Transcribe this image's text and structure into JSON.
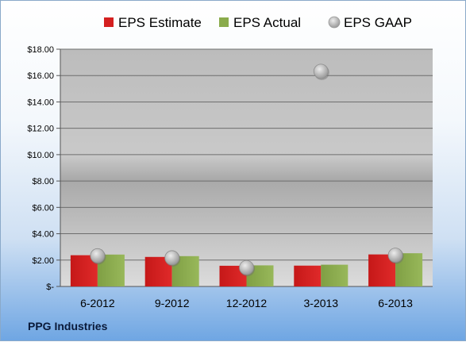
{
  "company": "PPG Industries",
  "chart_data": {
    "type": "bar",
    "categories": [
      "6-2012",
      "9-2012",
      "12-2012",
      "3-2013",
      "6-2013"
    ],
    "series": [
      {
        "name": "EPS Estimate",
        "type": "bar",
        "color": "#d42020",
        "values": [
          2.37,
          2.24,
          1.57,
          1.58,
          2.43
        ]
      },
      {
        "name": "EPS Actual",
        "type": "bar",
        "color": "#8aab4c",
        "values": [
          2.42,
          2.3,
          1.6,
          1.65,
          2.52
        ]
      },
      {
        "name": "EPS GAAP",
        "type": "scatter",
        "color": "#b4b4b4",
        "values": [
          2.33,
          2.17,
          1.43,
          16.32,
          2.37
        ]
      }
    ],
    "ylim": [
      0,
      18
    ],
    "yticks": [
      0,
      2,
      4,
      6,
      8,
      10,
      12,
      14,
      16,
      18
    ],
    "ytick_labels": [
      "$-",
      "$2.00",
      "$4.00",
      "$6.00",
      "$8.00",
      "$10.00",
      "$12.00",
      "$14.00",
      "$16.00",
      "$18.00"
    ],
    "grid": true,
    "legend_position": "top"
  }
}
